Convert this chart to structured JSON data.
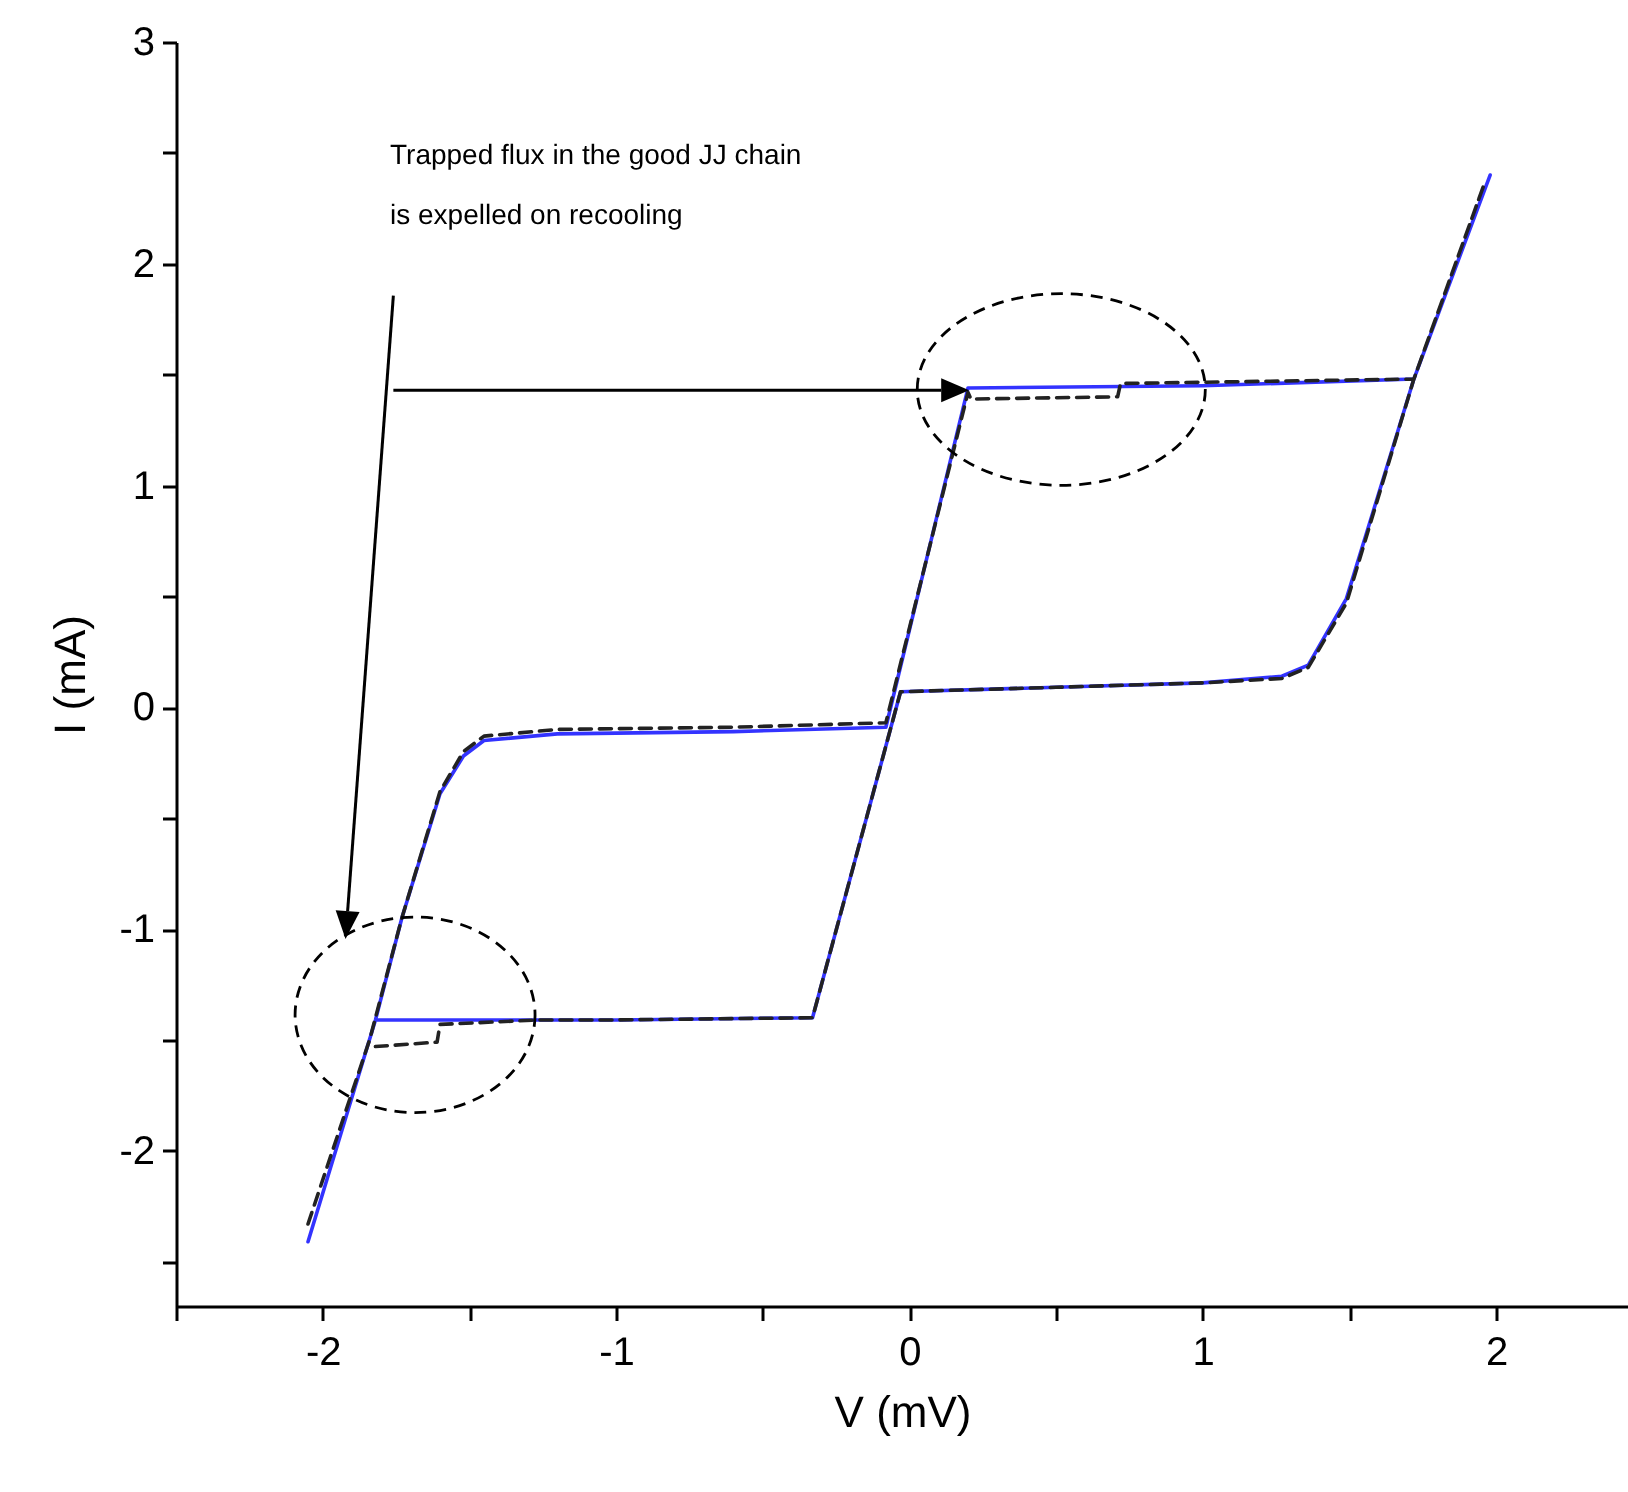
{
  "chart_data": {
    "type": "line",
    "xlabel": "V (mV)",
    "ylabel": "I (mA)",
    "annotations": [
      "Trapped flux in the good JJ chain is expelled on recooling"
    ],
    "xlim": [
      -2.5,
      2.45
    ],
    "ylim": [
      -2.7,
      3
    ],
    "xticks": [
      {
        "value": -2.5,
        "label": null
      },
      -2,
      {
        "value": -1.5,
        "label": null
      },
      -1,
      {
        "value": -0.5,
        "label": null
      },
      0,
      {
        "value": 0.5,
        "label": null
      },
      1,
      {
        "value": 1.5,
        "label": null
      },
      2
    ],
    "yticks": [
      {
        "value": -2.5,
        "label": null
      },
      -2,
      {
        "value": -1.5,
        "label": null
      },
      -1,
      {
        "value": -0.5,
        "label": null
      },
      0,
      {
        "value": 0.5,
        "label": null
      },
      1,
      {
        "value": 1.5,
        "label": null
      },
      2,
      {
        "value": 2.5,
        "label": null
      },
      3
    ],
    "grid": false,
    "marker": "none",
    "series": [
      {
        "color": "#3333ff",
        "line_style": "solid",
        "x": [
          -2.05,
          -1.82,
          -1.73,
          -1.6,
          -1.52,
          -1.45,
          -1.2,
          -0.6,
          -0.08,
          0.2,
          1.0,
          1.72,
          1.98,
          1.72,
          1.49,
          1.36,
          1.27,
          1.0,
          0.5,
          -0.03,
          -0.33,
          -1.0,
          -1.82
        ],
        "values": [
          -2.41,
          -1.41,
          -0.95,
          -0.39,
          -0.22,
          -0.15,
          -0.12,
          -0.11,
          -0.09,
          1.44,
          1.45,
          1.48,
          2.4,
          1.48,
          0.49,
          0.19,
          0.14,
          0.11,
          0.09,
          0.07,
          -1.4,
          -1.41,
          -1.41
        ]
      },
      {
        "color": "#222222",
        "line_style": "dashed",
        "x": [
          -2.05,
          -1.84,
          -1.73,
          -1.6,
          -1.52,
          -1.45,
          -1.2,
          -0.6,
          -0.08,
          0.2,
          0.21,
          0.71,
          0.72,
          1.72,
          1.96,
          1.72,
          1.49,
          1.36,
          1.27,
          1.0,
          0.5,
          -0.03,
          -0.33,
          -1.0,
          -1.26,
          -1.6,
          -1.61,
          -1.82
        ],
        "values": [
          -2.33,
          -1.5,
          -0.95,
          -0.38,
          -0.2,
          -0.13,
          -0.1,
          -0.09,
          -0.07,
          1.42,
          1.39,
          1.4,
          1.46,
          1.48,
          2.36,
          1.48,
          0.47,
          0.18,
          0.13,
          0.11,
          0.09,
          0.07,
          -1.4,
          -1.41,
          -1.41,
          -1.43,
          -1.51,
          -1.53
        ]
      }
    ]
  }
}
